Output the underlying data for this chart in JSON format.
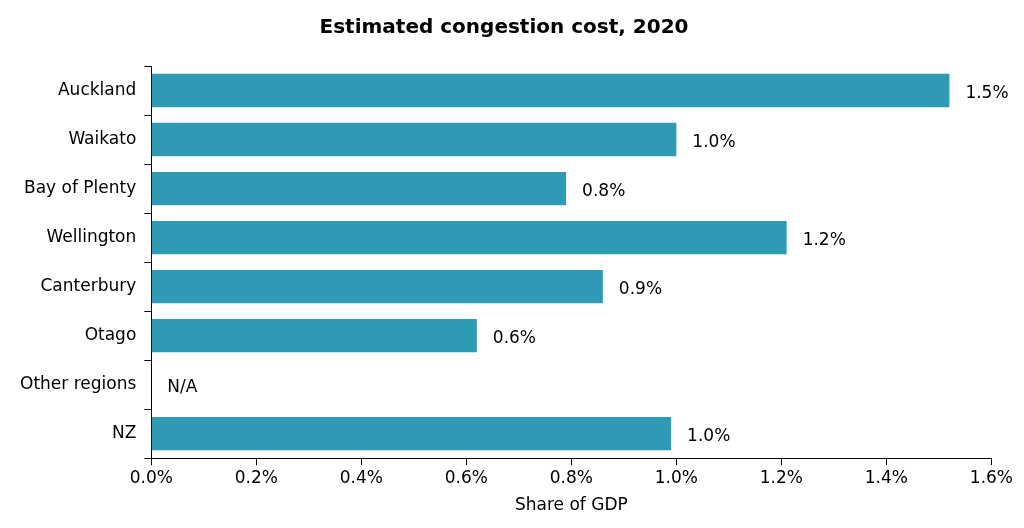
{
  "chart_data": {
    "type": "bar",
    "orientation": "horizontal",
    "title": "Estimated congestion cost, 2020",
    "xlabel": "Share of GDP",
    "categories": [
      "Auckland",
      "Waikato",
      "Bay of Plenty",
      "Wellington",
      "Canterbury",
      "Otago",
      "Other regions",
      "NZ"
    ],
    "values": [
      1.52,
      1.0,
      0.79,
      1.21,
      0.86,
      0.62,
      null,
      0.99
    ],
    "value_labels": [
      "1.5%",
      "1.0%",
      "0.8%",
      "1.2%",
      "0.9%",
      "0.6%",
      "N/A",
      "1.0%"
    ],
    "color": "#2e9ab4",
    "xlim": [
      0,
      1.6
    ],
    "xticks": [
      {
        "value": 0,
        "label": "0.0%"
      },
      {
        "value": 0.2,
        "label": "0.2%"
      },
      {
        "value": 0.4,
        "label": "0.4%"
      },
      {
        "value": 0.6,
        "label": "0.6%"
      },
      {
        "value": 0.8,
        "label": "0.8%"
      },
      {
        "value": 1.0,
        "label": "1.0%"
      },
      {
        "value": 1.2,
        "label": "1.2%"
      },
      {
        "value": 1.4,
        "label": "1.4%"
      },
      {
        "value": 1.6,
        "label": "1.6%"
      }
    ],
    "grid": false,
    "legend": false
  }
}
